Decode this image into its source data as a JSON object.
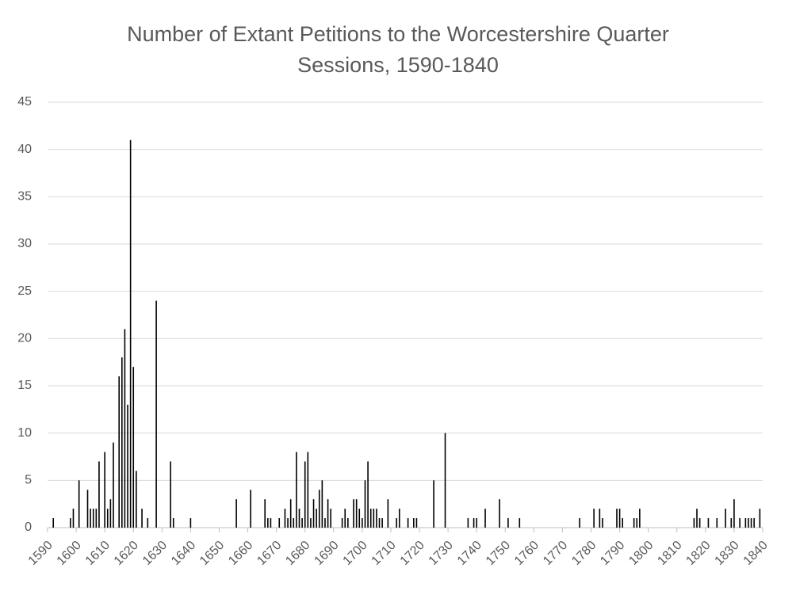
{
  "chart_data": {
    "type": "bar",
    "title": "Number of Extant Petitions to the Worcestershire Quarter Sessions, 1590-1840",
    "x": [
      1592,
      1598,
      1599,
      1601,
      1604,
      1605,
      1606,
      1607,
      1608,
      1610,
      1611,
      1612,
      1613,
      1615,
      1616,
      1617,
      1618,
      1619,
      1620,
      1621,
      1623,
      1625,
      1628,
      1633,
      1634,
      1640,
      1656,
      1661,
      1666,
      1667,
      1668,
      1671,
      1673,
      1674,
      1675,
      1676,
      1677,
      1678,
      1679,
      1680,
      1681,
      1682,
      1683,
      1684,
      1685,
      1686,
      1687,
      1688,
      1689,
      1693,
      1694,
      1695,
      1697,
      1698,
      1699,
      1700,
      1701,
      1702,
      1703,
      1704,
      1705,
      1706,
      1707,
      1709,
      1712,
      1713,
      1716,
      1718,
      1719,
      1725,
      1729,
      1737,
      1739,
      1740,
      1743,
      1748,
      1751,
      1755,
      1776,
      1781,
      1783,
      1784,
      1789,
      1790,
      1791,
      1795,
      1796,
      1797,
      1816,
      1817,
      1818,
      1821,
      1824,
      1827,
      1829,
      1830,
      1832,
      1834,
      1835,
      1836,
      1837,
      1839
    ],
    "values": [
      1,
      1,
      2,
      5,
      4,
      2,
      2,
      2,
      7,
      8,
      2,
      3,
      9,
      16,
      18,
      21,
      13,
      41,
      17,
      6,
      2,
      1,
      24,
      7,
      1,
      1,
      3,
      4,
      3,
      1,
      1,
      1,
      2,
      1,
      3,
      1,
      8,
      2,
      1,
      7,
      8,
      1,
      3,
      2,
      4,
      5,
      1,
      3,
      2,
      1,
      2,
      1,
      3,
      3,
      2,
      1,
      5,
      7,
      2,
      2,
      2,
      1,
      1,
      3,
      1,
      2,
      1,
      1,
      1,
      5,
      10,
      1,
      1,
      1,
      2,
      3,
      1,
      1,
      1,
      2,
      2,
      1,
      2,
      2,
      1,
      1,
      1,
      2,
      1,
      2,
      1,
      1,
      1,
      2,
      1,
      3,
      1,
      1,
      1,
      1,
      1,
      2
    ],
    "color": "#000000",
    "xlim": [
      1590,
      1840
    ],
    "xticks": [
      1590,
      1600,
      1610,
      1620,
      1630,
      1640,
      1650,
      1660,
      1670,
      1680,
      1690,
      1700,
      1710,
      1720,
      1730,
      1740,
      1750,
      1760,
      1770,
      1780,
      1790,
      1800,
      1810,
      1820,
      1830,
      1840
    ],
    "ylim": [
      0,
      45
    ],
    "yticks": [
      0,
      5,
      10,
      15,
      20,
      25,
      30,
      35,
      40,
      45
    ],
    "grid": true
  }
}
